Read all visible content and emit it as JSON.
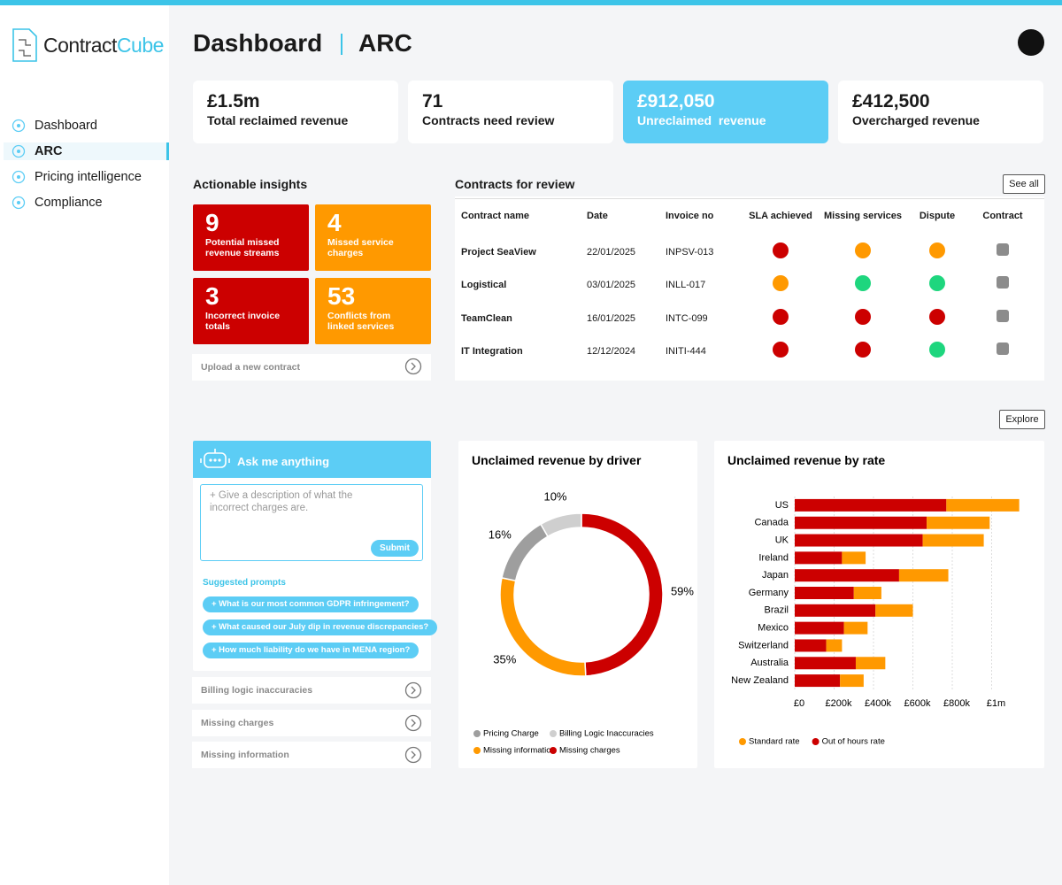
{
  "sidebar": {
    "brand": {
      "first": "Contract",
      "second": "Cube"
    },
    "nav": [
      "Dashboard",
      "ARC",
      "Pricing intelligence",
      "Compliance"
    ],
    "active_nav": 1
  },
  "header": {
    "title": "Dashboard",
    "section": "ARC"
  },
  "kpis": [
    {
      "value": "£1.5m",
      "label": "Total reclaimed revenue",
      "highlight": false
    },
    {
      "value": "71",
      "label": "Contracts need review",
      "highlight": false
    },
    {
      "value": "£912,050",
      "label": "Unreclaimed  revenue",
      "highlight": true
    },
    {
      "value": "£412,500",
      "label": "Overcharged revenue",
      "highlight": false
    }
  ],
  "insights": {
    "title": "Actionable insights",
    "cards": [
      {
        "value": 9,
        "label": "Potential missed revenue streams",
        "color": "#cc0000"
      },
      {
        "value": 4,
        "label": "Missed service charges",
        "color": "#ff9900"
      },
      {
        "value": 3,
        "label": "Incorrect invoice totals",
        "color": "#cc0000"
      },
      {
        "value": 53,
        "label": "Conflicts from linked services",
        "color": "#ff9900"
      }
    ],
    "upload": "Upload a new contract"
  },
  "contracts": {
    "title": "Contracts for review",
    "see_all": "See all",
    "columns": [
      "Contract name",
      "Date",
      "Invoice no",
      "SLA achieved",
      "Missing services",
      "Dispute",
      "Contract"
    ],
    "rows": [
      {
        "name": "Project SeaView",
        "date": "22/01/2025",
        "invoice": "INPSV-013",
        "status": [
          "#cc0000",
          "#ff9900",
          "#ff9900"
        ]
      },
      {
        "name": "Logistical",
        "date": "03/01/2025",
        "invoice": "INLL-017",
        "status": [
          "#ff9900",
          "#1ed67e",
          "#1ed67e"
        ]
      },
      {
        "name": "TeamClean",
        "date": "16/01/2025",
        "invoice": "INTC-099",
        "status": [
          "#cc0000",
          "#cc0000",
          "#cc0000"
        ]
      },
      {
        "name": "IT Integration",
        "date": "12/12/2024",
        "invoice": "INITI-444",
        "status": [
          "#cc0000",
          "#cc0000",
          "#1ed67e"
        ]
      }
    ]
  },
  "explore": "Explore",
  "assistant": {
    "title": "Ask me anything",
    "placeholder": "+ Give a description of what the incorrect charges are.",
    "submit": "Submit",
    "suggested_title": "Suggested prompts",
    "prompts": [
      "+ What is our most common GDPR infringement?",
      "+ What caused our July dip in revenue discrepancies?",
      "+ How much liability do we have in MENA region?"
    ],
    "accordions": [
      "Billing logic inaccuracies",
      "Missing charges",
      "Missing information"
    ]
  },
  "chart_data": [
    {
      "type": "donut",
      "title": "Unclaimed revenue by driver",
      "categories": [
        "Pricing Charge",
        "Billing Logic Inaccuracies",
        "Missing information",
        "Missing charges"
      ],
      "values": [
        16,
        10,
        35,
        59
      ],
      "value_labels": [
        "16%",
        "10%",
        "35%",
        "59%"
      ],
      "colors": [
        "#9e9e9e",
        "#cfcfcf",
        "#ff9900",
        "#cc0000"
      ]
    },
    {
      "type": "bar",
      "orientation": "horizontal",
      "stacked": true,
      "title": "Unclaimed revenue by rate",
      "categories": [
        "US",
        "Canada",
        "UK",
        "Ireland",
        "Japan",
        "Germany",
        "Brazil",
        "Mexico",
        "Switzerland",
        "Australia",
        "New Zealand"
      ],
      "series": [
        {
          "name": "Standard rate",
          "color": "#ff9900",
          "values": [
            370000,
            320000,
            310000,
            120000,
            250000,
            140000,
            190000,
            120000,
            80000,
            150000,
            120000
          ]
        },
        {
          "name": "Out of hours rate",
          "color": "#cc0000",
          "values": [
            770000,
            670000,
            650000,
            240000,
            530000,
            300000,
            410000,
            250000,
            160000,
            310000,
            230000
          ]
        }
      ],
      "xlim": [
        0,
        1200000
      ],
      "xticks": [
        {
          "value": 0,
          "label": "£0"
        },
        {
          "value": 200000,
          "label": "£200k"
        },
        {
          "value": 400000,
          "label": "£400k"
        },
        {
          "value": 600000,
          "label": "£600k"
        },
        {
          "value": 800000,
          "label": "£800k"
        },
        {
          "value": 1000000,
          "label": "£1m"
        }
      ],
      "grid": true
    }
  ]
}
